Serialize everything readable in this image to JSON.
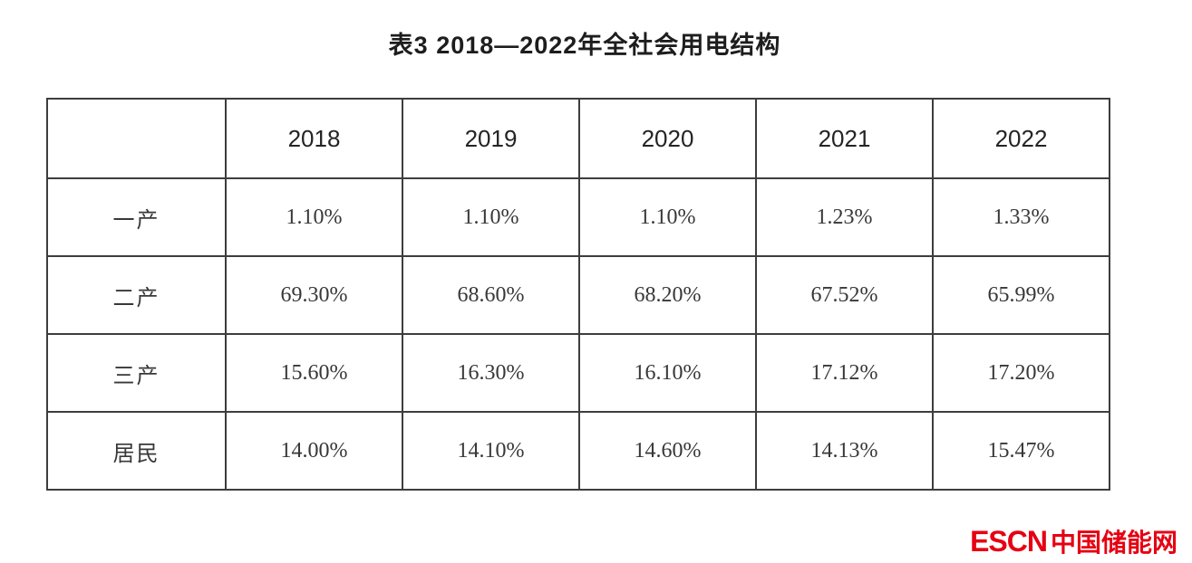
{
  "chart_data": {
    "type": "table",
    "title": "表3  2018—2022年全社会用电结构",
    "columns": [
      "",
      "2018",
      "2019",
      "2020",
      "2021",
      "2022"
    ],
    "rows": [
      {
        "label": "一产",
        "values": [
          "1.10%",
          "1.10%",
          "1.10%",
          "1.23%",
          "1.33%"
        ]
      },
      {
        "label": "二产",
        "values": [
          "69.30%",
          "68.60%",
          "68.20%",
          "67.52%",
          "65.99%"
        ]
      },
      {
        "label": "三产",
        "values": [
          "15.60%",
          "16.30%",
          "16.10%",
          "17.12%",
          "17.20%"
        ]
      },
      {
        "label": "居民",
        "values": [
          "14.00%",
          "14.10%",
          "14.60%",
          "14.13%",
          "15.47%"
        ]
      }
    ],
    "layout": {
      "grid": "full-borders",
      "header_position": "top"
    }
  },
  "watermark": {
    "brand_en": "ESCN",
    "brand_cn": "中国储能网",
    "color": "#e60012"
  },
  "colors": {
    "table_border": "#3d3d3d",
    "title_text": "#1d1d1d",
    "cell_text": "#383838",
    "background": "#ffffff"
  }
}
